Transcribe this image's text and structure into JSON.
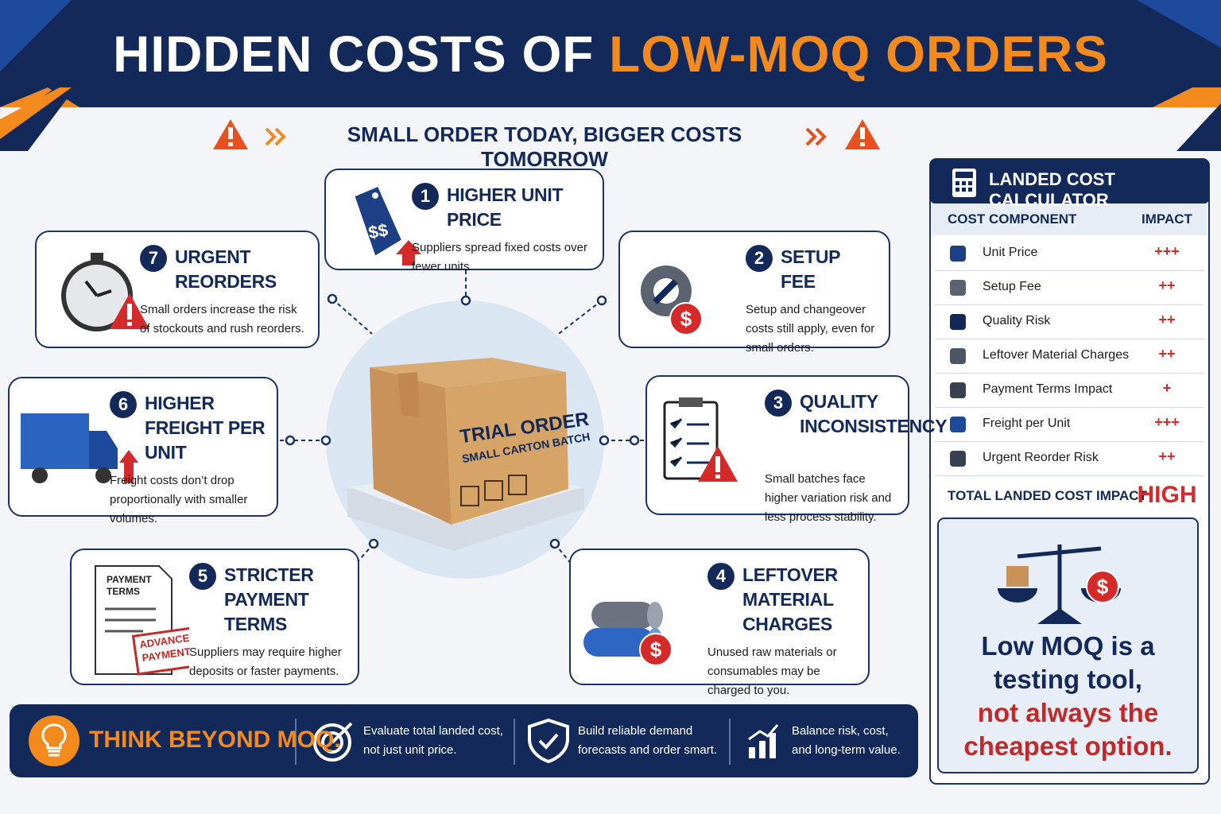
{
  "header": {
    "title_part1": "HIDDEN COSTS OF",
    "title_part2": "LOW-MOQ ORDERS",
    "subtitle": "SMALL ORDER TODAY, BIGGER COSTS TOMORROW"
  },
  "center": {
    "box_title": "TRIAL ORDER",
    "box_subtitle": "SMALL CARTON BATCH"
  },
  "currency_symbol": "$",
  "payment_icon": {
    "document_title": "PAYMENT TERMS",
    "stamp": "ADVANCE PAYMENT"
  },
  "cards": [
    {
      "number": 1,
      "title": "HIGHER UNIT PRICE",
      "text": "Suppliers spread fixed costs over fewer units."
    },
    {
      "number": 2,
      "title": "SETUP FEE",
      "text": "Setup and changeover costs still apply, even for small orders."
    },
    {
      "number": 3,
      "title": "QUALITY INCONSISTENCY",
      "text": "Small batches face higher variation risk and less process stability."
    },
    {
      "number": 4,
      "title": "LEFTOVER MATERIAL CHARGES",
      "text": "Unused raw materials or consumables may be charged to you."
    },
    {
      "number": 5,
      "title": "STRICTER PAYMENT TERMS",
      "text": "Suppliers may require higher deposits or faster payments."
    },
    {
      "number": 6,
      "title": "HIGHER FREIGHT PER UNIT",
      "text": "Freight costs don’t drop proportionally with smaller volumes."
    },
    {
      "number": 7,
      "title": "URGENT REORDERS",
      "text": "Small orders increase the risk of stockouts and rush reorders."
    }
  ],
  "calculator": {
    "title": "LANDED COST CALCULATOR",
    "columns": [
      "COST COMPONENT",
      "IMPACT"
    ],
    "rows": [
      [
        "Unit Price",
        "+++"
      ],
      [
        "Setup Fee",
        "++"
      ],
      [
        "Quality Risk",
        "++"
      ],
      [
        "Leftover Material Charges",
        "++"
      ],
      [
        "Payment Terms Impact",
        "+"
      ],
      [
        "Freight per Unit",
        "+++"
      ],
      [
        "Urgent Reorder Risk",
        "++"
      ]
    ],
    "total": [
      "TOTAL LANDED COST IMPACT",
      "HIGH"
    ]
  },
  "callout": {
    "line1": "Low MOQ is a testing tool,",
    "line2": "not always the cheapest option."
  },
  "footer": {
    "headline": "THINK BEYOND MOQ.",
    "tips": [
      "Evaluate total landed cost, not just unit price.",
      "Build reliable demand forecasts and order smart.",
      "Balance risk, cost, and long-term value."
    ]
  }
}
